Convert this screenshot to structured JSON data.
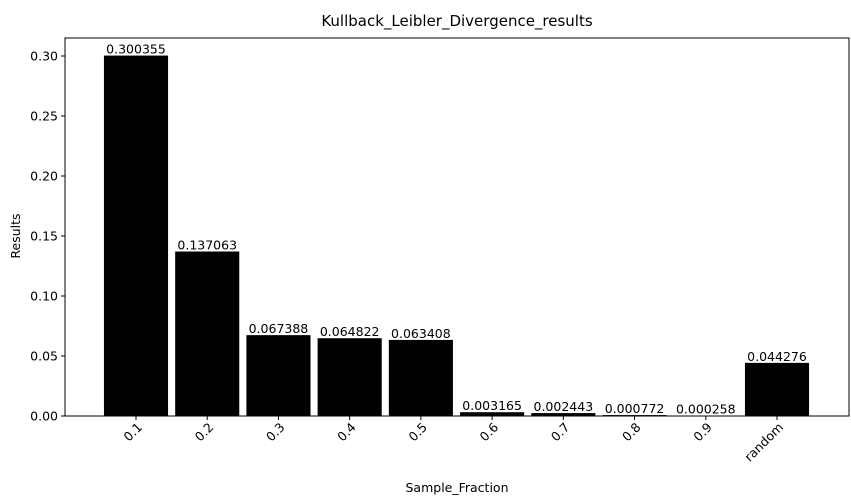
{
  "chart_data": {
    "type": "bar",
    "title": "Kullback_Leibler_Divergence_results",
    "xlabel": "Sample_Fraction",
    "ylabel": "Results",
    "categories": [
      "0.1",
      "0.2",
      "0.3",
      "0.4",
      "0.5",
      "0.6",
      "0.7",
      "0.8",
      "0.9",
      "random"
    ],
    "values": [
      0.300355,
      0.137063,
      0.067388,
      0.064822,
      0.063408,
      0.003165,
      0.002443,
      0.000772,
      0.000258,
      0.044276
    ],
    "value_labels": [
      "0.300355",
      "0.137063",
      "0.067388",
      "0.064822",
      "0.063408",
      "0.003165",
      "0.002443",
      "0.000772",
      "0.000258",
      "0.044276"
    ],
    "ylim": [
      0,
      0.315
    ],
    "yticks": [
      0.0,
      0.05,
      0.1,
      0.15,
      0.2,
      0.25,
      0.3
    ],
    "ytick_labels": [
      "0.00",
      "0.05",
      "0.10",
      "0.15",
      "0.20",
      "0.25",
      "0.30"
    ],
    "x_tick_rotation_deg": 45,
    "bar_color": "#000000",
    "grid": false,
    "legend": "none"
  }
}
